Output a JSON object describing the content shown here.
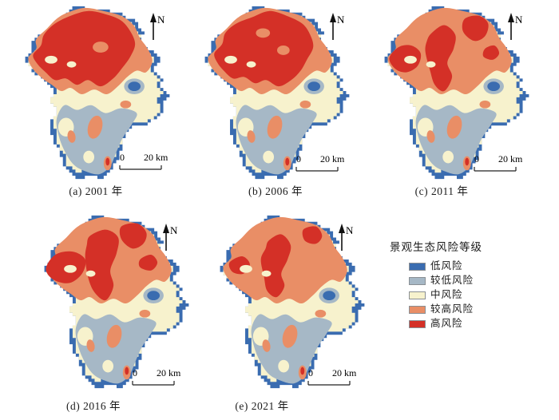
{
  "panels": [
    {
      "id": "a",
      "caption": "(a) 2001 年",
      "variant": "y2001"
    },
    {
      "id": "b",
      "caption": "(b) 2006 年",
      "variant": "y2006"
    },
    {
      "id": "c",
      "caption": "(c) 2011 年",
      "variant": "y2011"
    },
    {
      "id": "d",
      "caption": "(d) 2016 年",
      "variant": "y2016"
    },
    {
      "id": "e",
      "caption": "(e) 2021 年",
      "variant": "y2021"
    }
  ],
  "decorations": {
    "north_label": "N",
    "scale_start": "0",
    "scale_end": "20 km"
  },
  "legend": {
    "title": "景观生态风险等级",
    "items": [
      {
        "label": "低风险",
        "color": "#3a6cb0"
      },
      {
        "label": "较低风险",
        "color": "#a6b8c6"
      },
      {
        "label": "中风险",
        "color": "#f7f2cd"
      },
      {
        "label": "较高风险",
        "color": "#e98e66"
      },
      {
        "label": "高风险",
        "color": "#d43027"
      }
    ]
  }
}
